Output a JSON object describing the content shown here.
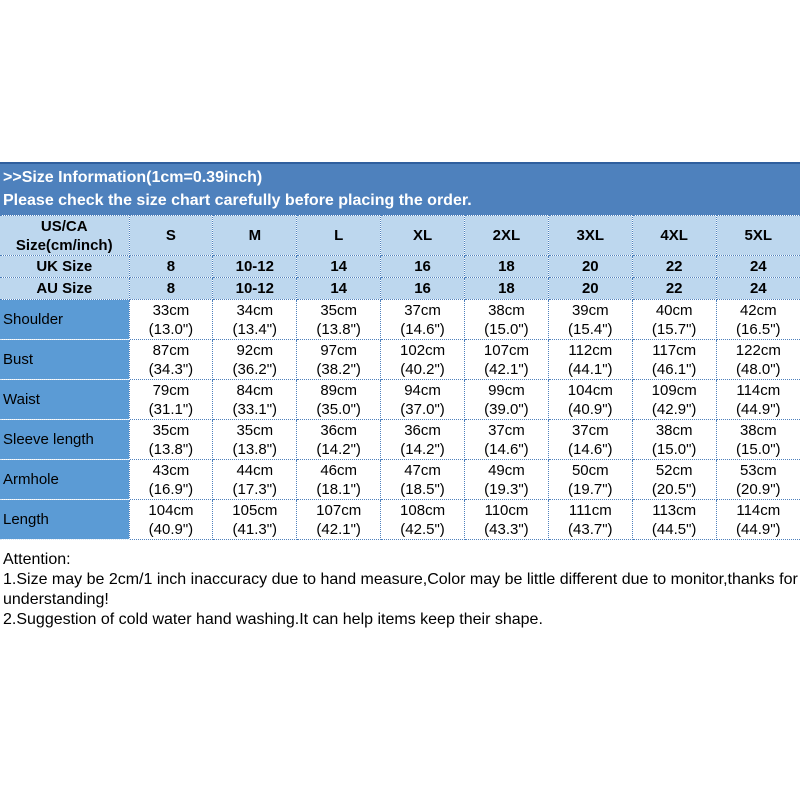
{
  "banner": {
    "title": ">>Size Information(1cm=0.39inch)",
    "subtitle": "Please check the size chart carefully before placing the order."
  },
  "table": {
    "corner_header_line1": "US/CA",
    "corner_header_line2": "Size(cm/inch)",
    "size_columns": [
      "S",
      "M",
      "L",
      "XL",
      "2XL",
      "3XL",
      "4XL",
      "5XL"
    ],
    "size_rows": [
      {
        "label": "UK Size",
        "values": [
          "8",
          "10-12",
          "14",
          "16",
          "18",
          "20",
          "22",
          "24"
        ]
      },
      {
        "label": "AU Size",
        "values": [
          "8",
          "10-12",
          "14",
          "16",
          "18",
          "20",
          "22",
          "24"
        ]
      }
    ],
    "measurement_rows": [
      {
        "label": "Shoulder",
        "cm": [
          "33cm",
          "34cm",
          "35cm",
          "37cm",
          "38cm",
          "39cm",
          "40cm",
          "42cm"
        ],
        "inch": [
          "(13.0\")",
          "(13.4\")",
          "(13.8\")",
          "(14.6\")",
          "(15.0\")",
          "(15.4\")",
          "(15.7\")",
          "(16.5\")"
        ]
      },
      {
        "label": "Bust",
        "cm": [
          "87cm",
          "92cm",
          "97cm",
          "102cm",
          "107cm",
          "112cm",
          "117cm",
          "122cm"
        ],
        "inch": [
          "(34.3\")",
          "(36.2\")",
          "(38.2\")",
          "(40.2\")",
          "(42.1\")",
          "(44.1\")",
          "(46.1\")",
          "(48.0\")"
        ]
      },
      {
        "label": "Waist",
        "cm": [
          "79cm",
          "84cm",
          "89cm",
          "94cm",
          "99cm",
          "104cm",
          "109cm",
          "114cm"
        ],
        "inch": [
          "(31.1\")",
          "(33.1\")",
          "(35.0\")",
          "(37.0\")",
          "(39.0\")",
          "(40.9\")",
          "(42.9\")",
          "(44.9\")"
        ]
      },
      {
        "label": "Sleeve length",
        "cm": [
          "35cm",
          "35cm",
          "36cm",
          "36cm",
          "37cm",
          "37cm",
          "38cm",
          "38cm"
        ],
        "inch": [
          "(13.8\")",
          "(13.8\")",
          "(14.2\")",
          "(14.2\")",
          "(14.6\")",
          "(14.6\")",
          "(15.0\")",
          "(15.0\")"
        ]
      },
      {
        "label": "Armhole",
        "cm": [
          "43cm",
          "44cm",
          "46cm",
          "47cm",
          "49cm",
          "50cm",
          "52cm",
          "53cm"
        ],
        "inch": [
          "(16.9\")",
          "(17.3\")",
          "(18.1\")",
          "(18.5\")",
          "(19.3\")",
          "(19.7\")",
          "(20.5\")",
          "(20.9\")"
        ]
      },
      {
        "label": "Length",
        "cm": [
          "104cm",
          "105cm",
          "107cm",
          "108cm",
          "110cm",
          "111cm",
          "113cm",
          "114cm"
        ],
        "inch": [
          "(40.9\")",
          "(41.3\")",
          "(42.1\")",
          "(42.5\")",
          "(43.3\")",
          "(43.7\")",
          "(44.5\")",
          "(44.9\")"
        ]
      }
    ]
  },
  "attention": {
    "heading": "Attention:",
    "lines": [
      "1.Size may be 2cm/1 inch inaccuracy due to hand measure,Color may be little different due to monitor,thanks for your",
      "understanding!",
      "2.Suggestion of cold water hand washing.It can help items keep their shape."
    ]
  },
  "colors": {
    "banner_bg": "#4e81bd",
    "banner_text": "#ffffff",
    "header_row_bg": "#bdd7ee",
    "label_column_bg": "#5b9bd5",
    "grid_dotted": "#4f81bd",
    "body_text": "#000000"
  }
}
